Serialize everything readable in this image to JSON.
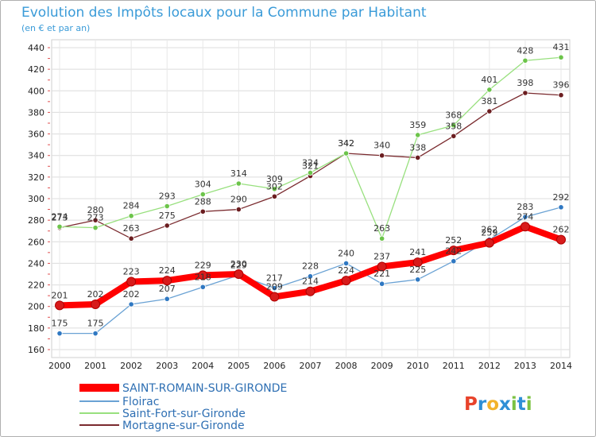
{
  "brand": {
    "letters": [
      "P",
      "r",
      "o",
      "x",
      "i",
      "t",
      "i"
    ],
    "colors": [
      "#e8432b",
      "#2f8fd6",
      "#f2b22b",
      "#2f8fd6",
      "#7cc242",
      "#2f8fd6",
      "#7cc242"
    ]
  },
  "chart_data": {
    "type": "line",
    "title": "Evolution des Impôts locaux pour la Commune par Habitant",
    "subtitle": "(en € et par an)",
    "xlabel": "",
    "ylabel": "",
    "x": [
      "2000",
      "2001",
      "2002",
      "2003",
      "2004",
      "2005",
      "2006",
      "2007",
      "2008",
      "2009",
      "2010",
      "2011",
      "2012",
      "2013",
      "2014"
    ],
    "ylim": [
      160,
      440
    ],
    "yticks": [
      160,
      180,
      200,
      220,
      240,
      260,
      280,
      300,
      320,
      340,
      360,
      380,
      400,
      420,
      440
    ],
    "grid": true,
    "legend_position": "bottom-left",
    "series": [
      {
        "name": "SAINT-ROMAIN-SUR-GIRONDE",
        "color": "#ff0000",
        "marker": "#d81b1b",
        "values": [
          201,
          202,
          223,
          224,
          229,
          230,
          209,
          214,
          224,
          237,
          241,
          252,
          259,
          274,
          262
        ]
      },
      {
        "name": "Floirac",
        "color": "#6aa2d4",
        "marker": "#2f78c2",
        "values": [
          175,
          175,
          202,
          207,
          218,
          229,
          217,
          228,
          240,
          221,
          225,
          242,
          262,
          283,
          292
        ]
      },
      {
        "name": "Saint-Fort-sur-Gironde",
        "color": "#98e07e",
        "marker": "#6cc44a",
        "values": [
          274,
          273,
          284,
          293,
          304,
          314,
          309,
          324,
          342,
          263,
          359,
          368,
          401,
          428,
          431
        ]
      },
      {
        "name": "Mortagne-sur-Gironde",
        "color": "#7a2a2e",
        "marker": "#6b1d20",
        "values": [
          273,
          280,
          263,
          275,
          288,
          290,
          302,
          321,
          342,
          340,
          338,
          358,
          381,
          398,
          396
        ]
      }
    ]
  }
}
